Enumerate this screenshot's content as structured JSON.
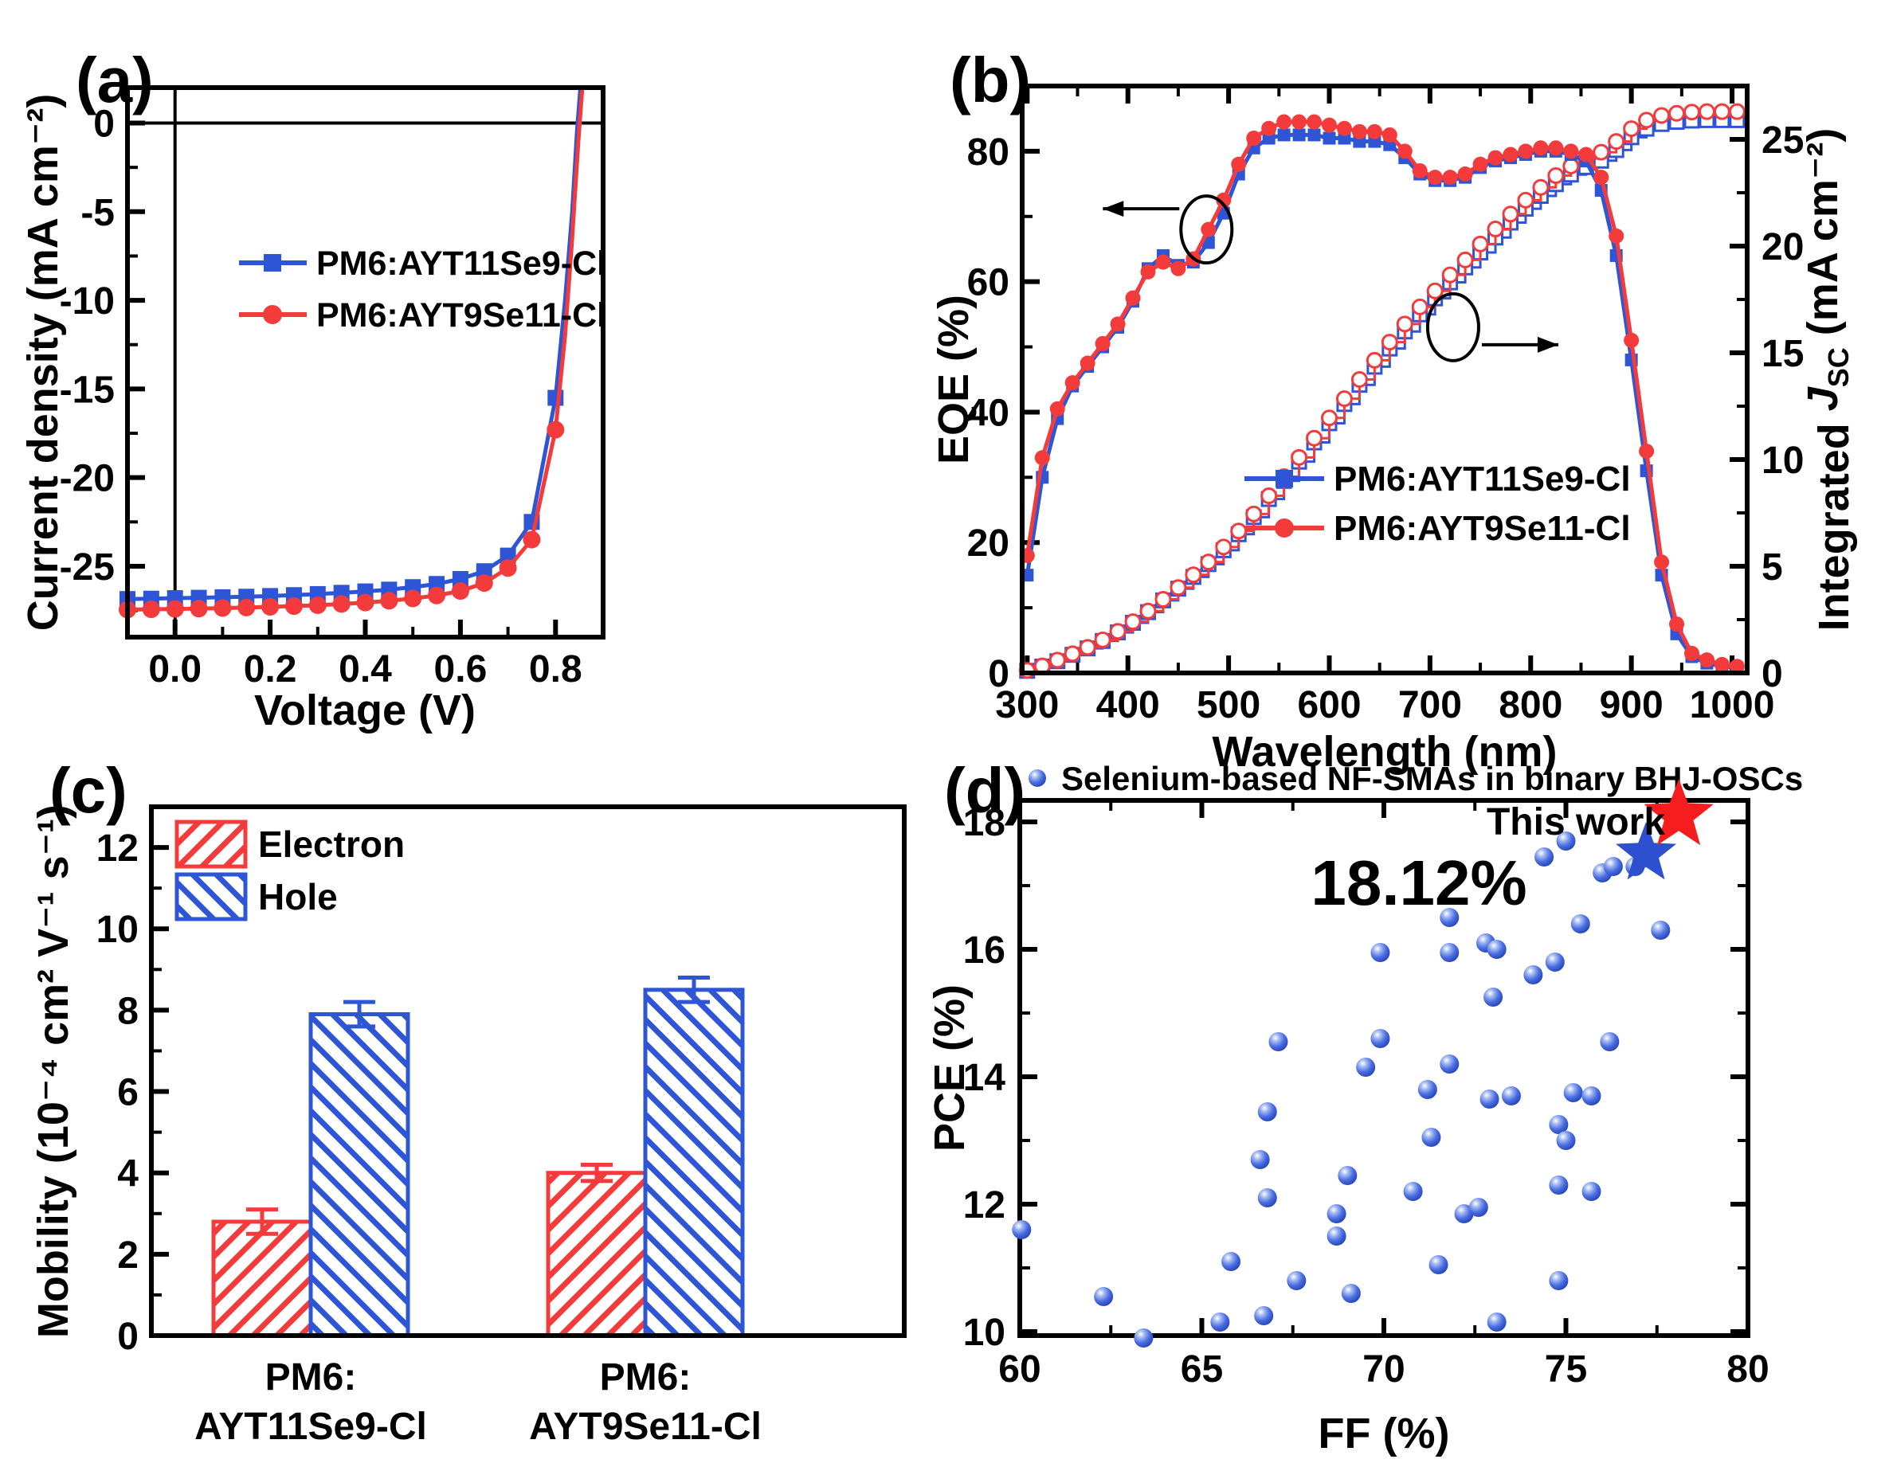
{
  "figure": {
    "background": "#ffffff",
    "accent_blue": "#2e55d6",
    "accent_red": "#f43b3b"
  },
  "chart_data": [
    {
      "panel_label": "(a)",
      "type": "line",
      "xlabel": "Voltage (V)",
      "ylabel": "Current density (mA cm⁻²)",
      "xlim": [
        -0.1,
        0.9
      ],
      "ylim": [
        -29,
        2
      ],
      "xticks": [
        0.0,
        0.2,
        0.4,
        0.6,
        0.8
      ],
      "yticks": [
        0,
        -5,
        -10,
        -15,
        -20,
        -25
      ],
      "series": [
        {
          "name": "PM6:AYT11Se9-Cl",
          "color": "#2e55d6",
          "marker": "square",
          "x": [
            -0.1,
            -0.05,
            0.0,
            0.05,
            0.1,
            0.15,
            0.2,
            0.25,
            0.3,
            0.35,
            0.4,
            0.45,
            0.5,
            0.55,
            0.6,
            0.65,
            0.7,
            0.75,
            0.8,
            0.82,
            0.835,
            0.845,
            0.852
          ],
          "y": [
            -26.85,
            -26.83,
            -26.8,
            -26.78,
            -26.75,
            -26.72,
            -26.68,
            -26.63,
            -26.57,
            -26.5,
            -26.42,
            -26.32,
            -26.18,
            -26.0,
            -25.72,
            -25.28,
            -24.4,
            -22.5,
            -15.5,
            -10.0,
            -5.0,
            -0.5,
            1.9
          ]
        },
        {
          "name": "PM6:AYT9Se11-Cl",
          "color": "#f43b3b",
          "marker": "circle",
          "x": [
            -0.1,
            -0.05,
            0.0,
            0.05,
            0.1,
            0.15,
            0.2,
            0.25,
            0.3,
            0.35,
            0.4,
            0.45,
            0.5,
            0.55,
            0.6,
            0.65,
            0.7,
            0.75,
            0.8,
            0.82,
            0.835,
            0.848,
            0.856
          ],
          "y": [
            -27.45,
            -27.43,
            -27.41,
            -27.39,
            -27.36,
            -27.33,
            -27.29,
            -27.25,
            -27.2,
            -27.13,
            -27.05,
            -26.95,
            -26.82,
            -26.65,
            -26.4,
            -25.95,
            -25.1,
            -23.5,
            -17.3,
            -12.0,
            -6.5,
            -1.0,
            1.9
          ]
        }
      ]
    },
    {
      "panel_label": "(b)",
      "type": "line-dual-axis",
      "xlabel": "Wavelength (nm)",
      "ylabel_left": "EQE (%)",
      "ylabel_right_parts": [
        {
          "t": "Integrated "
        },
        {
          "t": "J",
          "italic": true
        },
        {
          "t": "SC",
          "sub": true
        },
        {
          "t": " (mA cm⁻²)"
        }
      ],
      "xlim": [
        295,
        1015
      ],
      "ylim_left": [
        0,
        90
      ],
      "ylim_right": [
        0,
        27.5
      ],
      "xticks": [
        300,
        400,
        500,
        600,
        700,
        800,
        900,
        1000
      ],
      "yticks_left": [
        0,
        20,
        40,
        60,
        80
      ],
      "yticks_right": [
        0,
        5,
        10,
        15,
        20,
        25
      ],
      "wavelength": [
        300,
        315,
        330,
        345,
        360,
        375,
        390,
        405,
        420,
        435,
        450,
        465,
        480,
        495,
        510,
        525,
        540,
        555,
        570,
        585,
        600,
        615,
        630,
        645,
        660,
        675,
        690,
        705,
        720,
        735,
        750,
        765,
        780,
        795,
        810,
        825,
        840,
        855,
        870,
        885,
        900,
        915,
        930,
        945,
        960,
        975,
        990,
        1005
      ],
      "series_eqe": [
        {
          "name": "PM6:AYT11Se9-Cl",
          "color": "#2e55d6",
          "marker": "square",
          "values": [
            15,
            30,
            39,
            44,
            47,
            50,
            53,
            57,
            62,
            64,
            62.5,
            63,
            66,
            70.5,
            76.5,
            80.5,
            82,
            82.5,
            82.5,
            82.5,
            82,
            82,
            81.5,
            81.5,
            81,
            79,
            76.5,
            75.5,
            75.5,
            76,
            77.5,
            78.5,
            79,
            79.5,
            80,
            80,
            79.5,
            78.5,
            74,
            64,
            48,
            31,
            15,
            6,
            2.5,
            1.5,
            1,
            0.8
          ]
        },
        {
          "name": "PM6:AYT9Se11-Cl",
          "color": "#f43b3b",
          "marker": "circle",
          "values": [
            18,
            33,
            40.5,
            44.5,
            47.5,
            50.5,
            53.5,
            57.5,
            61.5,
            63,
            62,
            63.5,
            68,
            72.5,
            78,
            82,
            83.5,
            84.5,
            84.5,
            84.5,
            84,
            83.5,
            83,
            83,
            82.5,
            80,
            77,
            76,
            76,
            76.5,
            78,
            79,
            79.5,
            80,
            80.5,
            80.5,
            80,
            79.5,
            76,
            67,
            51,
            34,
            17,
            7.5,
            3,
            2,
            1.3,
            1
          ]
        }
      ],
      "series_jsc": [
        {
          "name": "PM6:AYT11Se9-Cl integrated Jsc",
          "color": "#2e55d6",
          "marker": "open-square",
          "values": [
            0.1,
            0.3,
            0.55,
            0.85,
            1.15,
            1.5,
            1.9,
            2.35,
            2.85,
            3.4,
            3.95,
            4.5,
            5.1,
            5.75,
            6.5,
            7.3,
            8.15,
            9.0,
            9.9,
            10.8,
            11.7,
            12.6,
            13.5,
            14.35,
            15.2,
            16.0,
            16.8,
            17.55,
            18.3,
            19.0,
            19.7,
            20.4,
            21.1,
            21.75,
            22.35,
            22.9,
            23.35,
            23.7,
            24.0,
            24.5,
            25.1,
            25.5,
            25.72,
            25.82,
            25.88,
            25.9,
            25.9,
            25.9
          ]
        },
        {
          "name": "PM6:AYT9Se11-Cl integrated Jsc",
          "color": "#f43b3b",
          "marker": "open-circle",
          "values": [
            0.12,
            0.33,
            0.6,
            0.9,
            1.2,
            1.55,
            1.95,
            2.4,
            2.9,
            3.45,
            4.0,
            4.6,
            5.2,
            5.9,
            6.65,
            7.45,
            8.3,
            9.2,
            10.1,
            11.0,
            11.95,
            12.85,
            13.75,
            14.65,
            15.5,
            16.35,
            17.15,
            17.9,
            18.65,
            19.35,
            20.1,
            20.8,
            21.5,
            22.15,
            22.75,
            23.3,
            23.75,
            24.1,
            24.4,
            24.9,
            25.5,
            25.9,
            26.12,
            26.22,
            26.28,
            26.3,
            26.3,
            26.3
          ]
        }
      ],
      "legend": [
        "PM6:AYT11Se9-Cl",
        "PM6:AYT9Se11-Cl"
      ],
      "annotations": [
        {
          "type": "ellipse-arrow",
          "x": 478,
          "y": 68,
          "axis": "left",
          "dir": "left"
        },
        {
          "type": "ellipse-arrow",
          "x": 723,
          "y": 16.2,
          "axis": "right",
          "dir": "right"
        }
      ]
    },
    {
      "panel_label": "(c)",
      "type": "bar",
      "ylabel": "Mobility (10⁻⁴ cm² V⁻¹ s⁻¹)",
      "ylim": [
        0,
        13
      ],
      "yticks": [
        0,
        2,
        4,
        6,
        8,
        10,
        12
      ],
      "categories": [
        [
          "PM6:",
          "AYT11Se9-Cl"
        ],
        [
          "PM6:",
          "AYT9Se11-Cl"
        ]
      ],
      "series": [
        {
          "name": "Electron",
          "color": "#f43b3b",
          "hatch": "/",
          "values": [
            2.8,
            4.0
          ],
          "errors": [
            0.3,
            0.2
          ]
        },
        {
          "name": "Hole",
          "color": "#2e55d6",
          "hatch": "\\",
          "values": [
            7.9,
            8.5
          ],
          "errors": [
            0.3,
            0.3
          ]
        }
      ]
    },
    {
      "panel_label": "(d)",
      "type": "scatter",
      "xlabel": "FF (%)",
      "ylabel": "PCE (%)",
      "xlim": [
        60,
        80
      ],
      "ylim": [
        9.94,
        18.4
      ],
      "xticks": [
        60,
        65,
        70,
        75,
        80
      ],
      "yticks": [
        10,
        12,
        14,
        16,
        18
      ],
      "legend_label": "Selenium-based NF-SMAs in binary BHJ-OSCs",
      "points": [
        [
          60.05,
          11.6
        ],
        [
          62.3,
          10.55
        ],
        [
          63.4,
          9.9
        ],
        [
          65.5,
          10.15
        ],
        [
          65.8,
          11.1
        ],
        [
          66.6,
          12.7
        ],
        [
          66.7,
          10.25
        ],
        [
          66.8,
          13.45
        ],
        [
          66.8,
          12.1
        ],
        [
          67.1,
          14.55
        ],
        [
          67.6,
          10.8
        ],
        [
          68.7,
          11.85
        ],
        [
          68.7,
          11.5
        ],
        [
          69.0,
          12.45
        ],
        [
          69.1,
          10.6
        ],
        [
          69.5,
          14.15
        ],
        [
          69.9,
          15.95
        ],
        [
          69.9,
          14.6
        ],
        [
          70.8,
          12.2
        ],
        [
          71.2,
          13.8
        ],
        [
          71.3,
          13.05
        ],
        [
          71.5,
          11.05
        ],
        [
          71.8,
          16.5
        ],
        [
          71.8,
          15.95
        ],
        [
          71.8,
          14.2
        ],
        [
          72.2,
          11.85
        ],
        [
          72.6,
          11.95
        ],
        [
          72.8,
          16.1
        ],
        [
          72.9,
          13.65
        ],
        [
          73.0,
          15.25
        ],
        [
          73.1,
          16.0
        ],
        [
          73.1,
          10.15
        ],
        [
          73.5,
          13.7
        ],
        [
          74.1,
          15.6
        ],
        [
          74.4,
          17.45
        ],
        [
          74.7,
          15.8
        ],
        [
          74.8,
          13.25
        ],
        [
          74.8,
          12.3
        ],
        [
          74.8,
          10.8
        ],
        [
          75.0,
          17.7
        ],
        [
          75.0,
          13.0
        ],
        [
          75.2,
          13.75
        ],
        [
          75.4,
          16.4
        ],
        [
          75.7,
          13.7
        ],
        [
          75.7,
          12.2
        ],
        [
          76.0,
          17.2
        ],
        [
          76.2,
          14.55
        ],
        [
          76.3,
          17.3
        ],
        [
          76.9,
          17.3
        ],
        [
          77.6,
          16.3
        ]
      ],
      "highlight": {
        "this_work": {
          "ff": 78.1,
          "pce": 18.1,
          "label": "This work",
          "pce_text": "18.12%",
          "color": "#f51d1d"
        },
        "star_blue": {
          "ff": 77.2,
          "pce": 17.5,
          "color": "#2c50d0"
        }
      }
    }
  ]
}
